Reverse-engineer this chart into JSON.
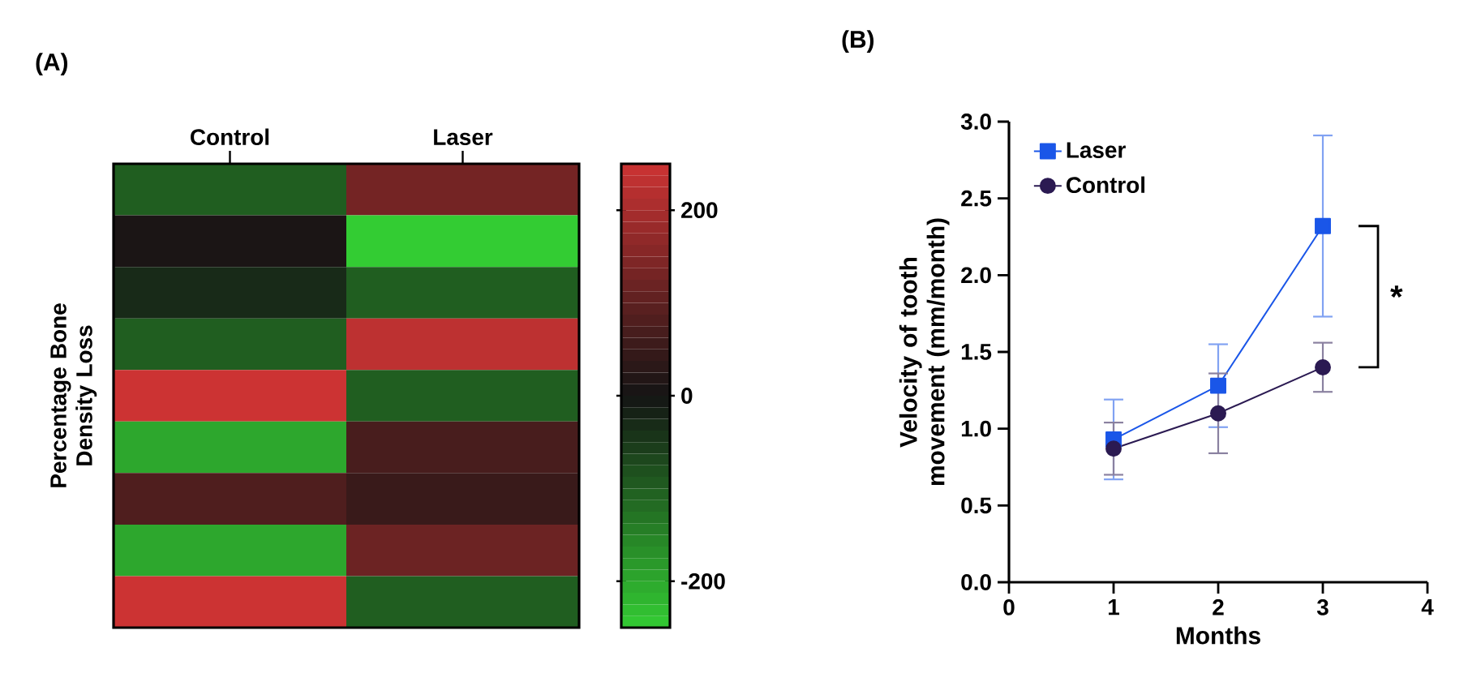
{
  "chart_data": [
    {
      "type": "heatmap",
      "title": "(A)",
      "ylabel": "Percentage Bone Density Loss",
      "categories": [
        "Control",
        "Laser"
      ],
      "y_categories": [
        null,
        null,
        null,
        null,
        null,
        null,
        null,
        null,
        null
      ],
      "cells": [
        [
          -100,
          130
        ],
        [
          10,
          -250
        ],
        [
          -30,
          -100
        ],
        [
          -100,
          230
        ],
        [
          250,
          -100
        ],
        [
          -200,
          70
        ],
        [
          80,
          50
        ],
        [
          -200,
          120
        ],
        [
          250,
          -100
        ]
      ],
      "clim": [
        -250,
        250
      ],
      "cticks": [
        -200,
        0,
        200
      ]
    },
    {
      "type": "line",
      "title": "(B)",
      "xlabel": "Months",
      "ylabel": "Velocity of tooth movement (mm/month)",
      "x": [
        1,
        2,
        3
      ],
      "series": [
        {
          "name": "Laser",
          "color": "#1a56e8",
          "marker": "square",
          "values": [
            0.93,
            1.28,
            2.32
          ],
          "errors": [
            0.26,
            0.27,
            0.59
          ]
        },
        {
          "name": "Control",
          "color": "#2b1a52",
          "marker": "circle",
          "values": [
            0.87,
            1.1,
            1.4
          ],
          "errors": [
            0.17,
            0.26,
            0.16
          ]
        }
      ],
      "xlim": [
        0,
        4
      ],
      "xticks": [
        0,
        1,
        2,
        3,
        4
      ],
      "ylim": [
        0,
        3
      ],
      "yticks": [
        {
          "value": 0,
          "label": "0.0"
        },
        {
          "value": 0.5,
          "label": "0.5"
        },
        {
          "value": 1,
          "label": "1.0"
        },
        {
          "value": 1.5,
          "label": "1.5"
        },
        {
          "value": 2,
          "label": "2.0"
        },
        {
          "value": 2.5,
          "label": "2.5"
        },
        {
          "value": 3,
          "label": "3.0"
        }
      ],
      "legend": "top left",
      "annotations": [
        "*"
      ]
    }
  ]
}
